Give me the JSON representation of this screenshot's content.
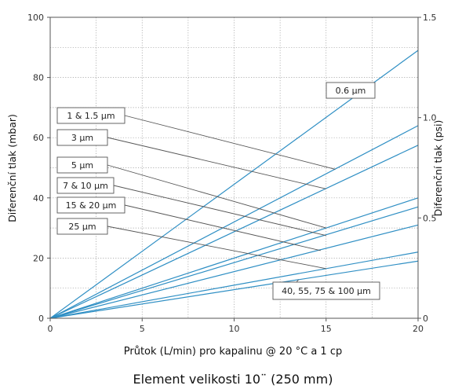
{
  "chart_data": {
    "type": "line",
    "xlabel": "Průtok (L/min) pro kapalinu @ 20 °C a 1 cp",
    "ylabel": "Diferenční tlak (mbar)",
    "y2label": "Diferenční tlak (psi)",
    "subtitle": "Element velikosti 10¨ (250 mm)",
    "xlim": [
      0,
      20
    ],
    "ylim": [
      0,
      100
    ],
    "y2lim": [
      0,
      1.5
    ],
    "x_ticks": [
      0,
      5,
      10,
      15,
      20
    ],
    "y_ticks": [
      0,
      20,
      40,
      60,
      80,
      100
    ],
    "y2_ticks": [
      "0",
      "0.5",
      "1.0",
      "1.5"
    ],
    "y2_tick_values": [
      0,
      0.5,
      1.0,
      1.5
    ],
    "grid": true,
    "line_color": "#2f8fc4",
    "series": [
      {
        "name": "0.6 µm",
        "x": [
          0,
          20
        ],
        "y": [
          0,
          89
        ]
      },
      {
        "name": "1 & 1.5 µm",
        "x": [
          0,
          20
        ],
        "y": [
          0,
          64
        ]
      },
      {
        "name": "3 µm",
        "x": [
          0,
          20
        ],
        "y": [
          0,
          57.5
        ]
      },
      {
        "name": "5 µm",
        "x": [
          0,
          20
        ],
        "y": [
          0,
          40
        ]
      },
      {
        "name": "7 & 10 µm",
        "x": [
          0,
          20
        ],
        "y": [
          0,
          37
        ]
      },
      {
        "name": "15 & 20 µm",
        "x": [
          0,
          20
        ],
        "y": [
          0,
          31
        ]
      },
      {
        "name": "25 µm",
        "x": [
          0,
          20
        ],
        "y": [
          0,
          22
        ]
      },
      {
        "name": "40, 55, 75 & 100 µm",
        "x": [
          0,
          20
        ],
        "y": [
          0,
          19
        ]
      }
    ],
    "callouts": [
      {
        "label": "0.6 µm",
        "target_x": 17,
        "target_y": 75.5
      },
      {
        "label": "1 & 1.5 µm",
        "target_x": 15.5,
        "target_y": 49.5
      },
      {
        "label": "3 µm",
        "target_x": 15,
        "target_y": 43
      },
      {
        "label": "5 µm",
        "target_x": 15,
        "target_y": 30
      },
      {
        "label": "7 & 10 µm",
        "target_x": 15,
        "target_y": 27.5
      },
      {
        "label": "15 & 20 µm",
        "target_x": 14.7,
        "target_y": 22.5
      },
      {
        "label": "25 µm",
        "target_x": 15,
        "target_y": 16.5
      },
      {
        "label": "40, 55, 75 & 100 µm",
        "target_x": 13.5,
        "target_y": 12.8
      }
    ]
  }
}
